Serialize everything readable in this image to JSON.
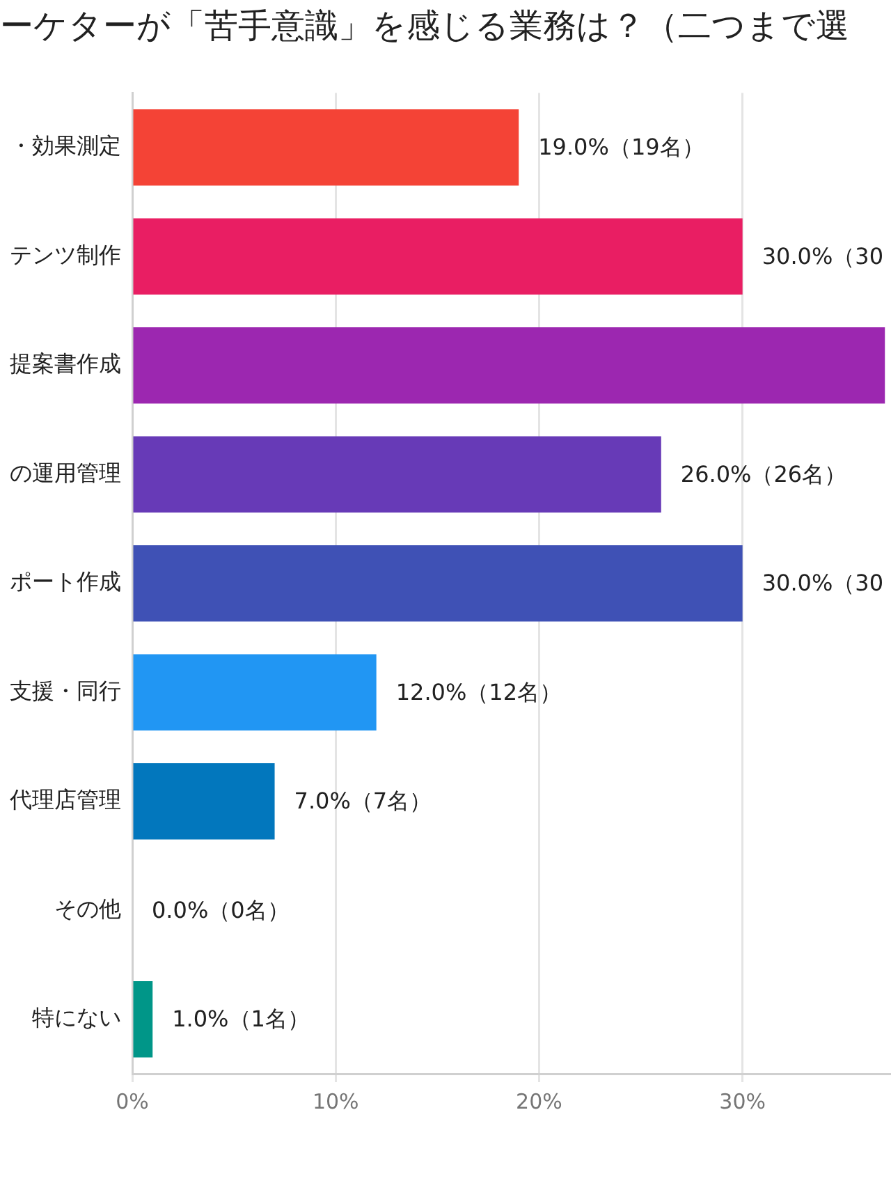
{
  "chart_data": {
    "type": "bar",
    "orientation": "horizontal",
    "title": "ーケターが「苦手意識」を感じる業務は？（二つまで選",
    "categories": [
      "・効果測定",
      "テンツ制作",
      "提案書作成",
      "の運用管理",
      "ポート作成",
      "支援・同行",
      "代理店管理",
      "その他",
      "特にない"
    ],
    "values": [
      19,
      30,
      37,
      26,
      30,
      12,
      7,
      0,
      1
    ],
    "colors": [
      "#f44336",
      "#e91e63",
      "#9c27b0",
      "#673ab7",
      "#3f51b5",
      "#2196f3",
      "#0277bd",
      "#00bcd4",
      "#009688"
    ],
    "value_labels": [
      "19.0%（19名）",
      "30.0%（30",
      null,
      "26.0%（26名）",
      "30.0%（30",
      "12.0%（12名）",
      "7.0%（7名）",
      "0.0%（0名）",
      "1.0%（1名）"
    ],
    "xlim": [
      0,
      37.3
    ],
    "xticks": [
      {
        "value": 0,
        "label": "0%"
      },
      {
        "value": 10,
        "label": "10%"
      },
      {
        "value": 20,
        "label": "20%"
      },
      {
        "value": 30,
        "label": "30%"
      }
    ],
    "grid": "x"
  }
}
